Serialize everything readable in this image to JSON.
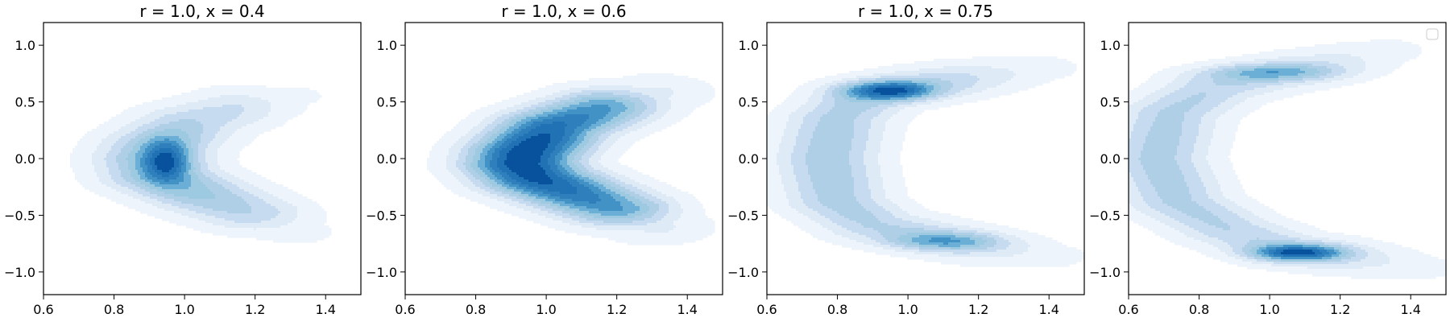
{
  "chart_data": {
    "type": "contour",
    "xlim": [
      0.6,
      1.5
    ],
    "ylim": [
      -1.2,
      1.2
    ],
    "x_ticks": [
      0.6,
      0.8,
      1.0,
      1.2,
      1.4
    ],
    "x_tick_labels": [
      "0.6",
      "0.8",
      "1.0",
      "1.2",
      "1.4"
    ],
    "y_ticks": [
      -1.0,
      -0.5,
      0.0,
      0.5,
      1.0
    ],
    "y_tick_labels": [
      "−1.0",
      "−0.5",
      "0.0",
      "0.5",
      "1.0"
    ],
    "colormap": "Blues",
    "levels": 10,
    "colors": [
      "#eef4fb",
      "#deebf7",
      "#c6dbef",
      "#aecfe6",
      "#9ecae1",
      "#6baed6",
      "#4292c6",
      "#2f7fbd",
      "#2171b5",
      "#08519c"
    ],
    "panels": [
      {
        "title": "r = 1.0, x = 0.4",
        "legend": false,
        "components": [
          {
            "path": [
              [
                1.31,
                0.55
              ],
              [
                1.17,
                0.47
              ],
              [
                1.02,
                0.32
              ],
              [
                0.93,
                0.12
              ],
              [
                0.91,
                0.0
              ],
              [
                0.93,
                -0.15
              ],
              [
                1.05,
                -0.32
              ],
              [
                1.2,
                -0.5
              ],
              [
                1.31,
                -0.64
              ]
            ],
            "width": 0.11,
            "peak": 0.95,
            "center": 0.55,
            "spread": 0.38
          },
          {
            "blob": [
              0.95,
              -0.02
            ],
            "sx": 0.045,
            "sy": 0.13,
            "peak": 0.9
          }
        ]
      },
      {
        "title": "r = 1.0, x = 0.6",
        "legend": false,
        "components": [
          {
            "path": [
              [
                1.31,
                0.58
              ],
              [
                1.17,
                0.46
              ],
              [
                1.02,
                0.28
              ],
              [
                0.94,
                0.05
              ],
              [
                0.93,
                -0.05
              ],
              [
                0.97,
                -0.17
              ],
              [
                1.1,
                -0.33
              ],
              [
                1.21,
                -0.46
              ],
              [
                1.31,
                -0.6
              ]
            ],
            "width": 0.11,
            "peak": 1.0,
            "center": 0.5,
            "spread": 0.45
          }
        ]
      },
      {
        "title": "r = 1.0, x = 0.75",
        "legend": false,
        "components": [
          {
            "path": [
              [
                1.38,
                0.8
              ],
              [
                1.2,
                0.72
              ],
              [
                1.03,
                0.65
              ],
              [
                0.88,
                0.55
              ],
              [
                0.8,
                0.35
              ],
              [
                0.77,
                0.0
              ],
              [
                0.8,
                -0.38
              ],
              [
                0.9,
                -0.58
              ],
              [
                1.05,
                -0.68
              ],
              [
                1.22,
                -0.78
              ],
              [
                1.4,
                -0.86
              ]
            ],
            "width": 0.1,
            "peak": 0.45,
            "center": 0.5,
            "spread": 0.55
          },
          {
            "blob": [
              0.95,
              0.6
            ],
            "sx": 0.09,
            "sy": 0.06,
            "peak": 0.75
          },
          {
            "blob": [
              1.1,
              -0.73
            ],
            "sx": 0.11,
            "sy": 0.055,
            "peak": 0.4
          }
        ]
      },
      {
        "title": "",
        "legend": true,
        "components": [
          {
            "path": [
              [
                1.33,
                0.95
              ],
              [
                1.15,
                0.82
              ],
              [
                0.97,
                0.72
              ],
              [
                0.84,
                0.62
              ],
              [
                0.72,
                0.4
              ],
              [
                0.68,
                0.0
              ],
              [
                0.74,
                -0.38
              ],
              [
                0.88,
                -0.62
              ],
              [
                1.05,
                -0.8
              ],
              [
                1.22,
                -0.87
              ],
              [
                1.42,
                -0.96
              ]
            ],
            "width": 0.1,
            "peak": 0.4,
            "center": 0.5,
            "spread": 0.6
          },
          {
            "blob": [
              1.0,
              0.76
            ],
            "sx": 0.13,
            "sy": 0.05,
            "peak": 0.35
          },
          {
            "blob": [
              1.08,
              -0.83
            ],
            "sx": 0.09,
            "sy": 0.05,
            "peak": 0.75
          }
        ]
      }
    ]
  }
}
